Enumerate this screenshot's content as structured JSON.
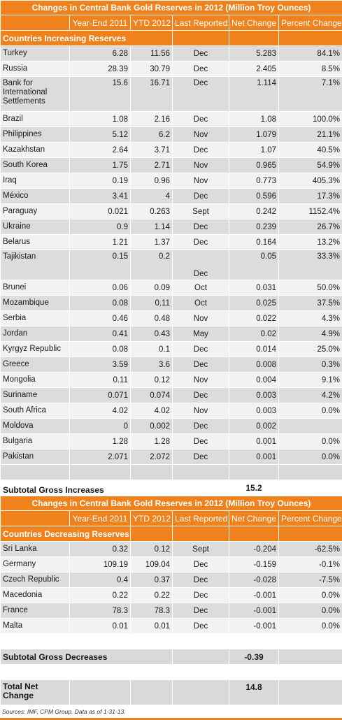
{
  "inc": {
    "title": "Changes in Central Bank Gold Reserves in 2012 (Million Troy Ounces)",
    "headers": [
      "Year-End 2011",
      "YTD 2012",
      "Last Reported",
      "Net Change",
      "Percent Change"
    ],
    "section": "Countries Increasing Reserves",
    "rows": [
      {
        "country": "Turkey",
        "ye": "6.28",
        "ytd": "11.56",
        "last": "Dec",
        "net": "5.283",
        "pct": "84.1%"
      },
      {
        "country": "Russia",
        "ye": "28.39",
        "ytd": "30.79",
        "last": "Dec",
        "net": "2.405",
        "pct": "8.5%"
      },
      {
        "country": "Bank for International Settlements",
        "ye": "15.6",
        "ytd": "16.71",
        "last": "Dec",
        "net": "1.114",
        "pct": "7.1%"
      },
      {
        "country": "Brazil",
        "ye": "1.08",
        "ytd": "2.16",
        "last": "Dec",
        "net": "1.08",
        "pct": "100.0%"
      },
      {
        "country": "Philippines",
        "ye": "5.12",
        "ytd": "6.2",
        "last": "Nov",
        "net": "1.079",
        "pct": "21.1%"
      },
      {
        "country": "Kazakhstan",
        "ye": "2.64",
        "ytd": "3.71",
        "last": "Dec",
        "net": "1.07",
        "pct": "40.5%"
      },
      {
        "country": "South Korea",
        "ye": "1.75",
        "ytd": "2.71",
        "last": "Nov",
        "net": "0.965",
        "pct": "54.9%"
      },
      {
        "country": "Iraq",
        "ye": "0.19",
        "ytd": "0.96",
        "last": "Nov",
        "net": "0.773",
        "pct": "405.3%"
      },
      {
        "country": "México",
        "ye": "3.41",
        "ytd": "4",
        "last": "Dec",
        "net": "0.596",
        "pct": "17.3%"
      },
      {
        "country": "Paraguay",
        "ye": "0.021",
        "ytd": "0.263",
        "last": "Sept",
        "net": "0.242",
        "pct": "1152.4%"
      },
      {
        "country": "Ukraine",
        "ye": "0.9",
        "ytd": "1.14",
        "last": "Dec",
        "net": "0.239",
        "pct": "26.7%"
      },
      {
        "country": "Belarus",
        "ye": "1.21",
        "ytd": "1.37",
        "last": "Dec",
        "net": "0.164",
        "pct": "13.2%"
      },
      {
        "country": "Tajikistan",
        "ye": "0.15",
        "ytd": "0.2",
        "last": "Dec",
        "net": "0.05",
        "pct": "33.3%"
      },
      {
        "country": "Brunei",
        "ye": "0.06",
        "ytd": "0.09",
        "last": "Oct",
        "net": "0.031",
        "pct": "50.0%"
      },
      {
        "country": "Mozambique",
        "ye": "0.08",
        "ytd": "0.11",
        "last": "Oct",
        "net": "0.025",
        "pct": "37.5%"
      },
      {
        "country": "Serbia",
        "ye": "0.46",
        "ytd": "0.48",
        "last": "Nov",
        "net": "0.022",
        "pct": "4.3%"
      },
      {
        "country": "Jordan",
        "ye": "0.41",
        "ytd": "0.43",
        "last": "May",
        "net": "0.02",
        "pct": "4.9%"
      },
      {
        "country": "Kyrgyz Republic",
        "ye": "0.08",
        "ytd": "0.1",
        "last": "Dec",
        "net": "0.014",
        "pct": "25.0%"
      },
      {
        "country": "Greece",
        "ye": "3.59",
        "ytd": "3.6",
        "last": "Dec",
        "net": "0.008",
        "pct": "0.3%"
      },
      {
        "country": "Mongolia",
        "ye": "0.11",
        "ytd": "0.12",
        "last": "Nov",
        "net": "0.004",
        "pct": "9.1%"
      },
      {
        "country": "Suriname",
        "ye": "0.071",
        "ytd": "0.074",
        "last": "Dec",
        "net": "0.003",
        "pct": "4.2%"
      },
      {
        "country": "South Africa",
        "ye": "4.02",
        "ytd": "4.02",
        "last": "Nov",
        "net": "0.003",
        "pct": "0.0%"
      },
      {
        "country": "Moldova",
        "ye": "0",
        "ytd": "0.002",
        "last": "Dec",
        "net": "0.002",
        "pct": ""
      },
      {
        "country": "Bulgaria",
        "ye": "1.28",
        "ytd": "1.28",
        "last": "Dec",
        "net": "0.001",
        "pct": "0.0%"
      },
      {
        "country": "Pakistan",
        "ye": "2.071",
        "ytd": "2.072",
        "last": "Dec",
        "net": "0.001",
        "pct": "0.0%"
      }
    ],
    "subtotal_label": "Subtotal Gross Increases",
    "subtotal_value": "15.2"
  },
  "dec": {
    "title": "Changes in Central Bank Gold Reserves in 2012 (Million Troy Ounces)",
    "headers": [
      "Year-End 2011",
      "YTD 2012",
      "Last Reported",
      "Net Change",
      "Percent Change"
    ],
    "section": "Countries Decreasing Reserves",
    "rows": [
      {
        "country": "Sri Lanka",
        "ye": "0.32",
        "ytd": "0.12",
        "last": "Sept",
        "net": "-0.204",
        "pct": "-62.5%"
      },
      {
        "country": "Germany",
        "ye": "109.19",
        "ytd": "109.04",
        "last": "Dec",
        "net": "-0.159",
        "pct": "-0.1%"
      },
      {
        "country": "Czech Republic",
        "ye": "0.4",
        "ytd": "0.37",
        "last": "Dec",
        "net": "-0.028",
        "pct": "-7.5%"
      },
      {
        "country": "Macedonia",
        "ye": "0.22",
        "ytd": "0.22",
        "last": "Dec",
        "net": "-0.001",
        "pct": "0.0%"
      },
      {
        "country": "France",
        "ye": "78.3",
        "ytd": "78.3",
        "last": "Dec",
        "net": "-0.001",
        "pct": "0.0%"
      },
      {
        "country": "Malta",
        "ye": "0.01",
        "ytd": "0.01",
        "last": "Dec",
        "net": "-0.001",
        "pct": "0.0%"
      }
    ],
    "subtotal_label": "Subtotal Gross Decreases",
    "subtotal_value": "-0.39"
  },
  "total": {
    "label": "Total Net Change",
    "value": "14.8"
  },
  "source": "Sources: IMF, CPM Group. Data as of 1-31-13."
}
